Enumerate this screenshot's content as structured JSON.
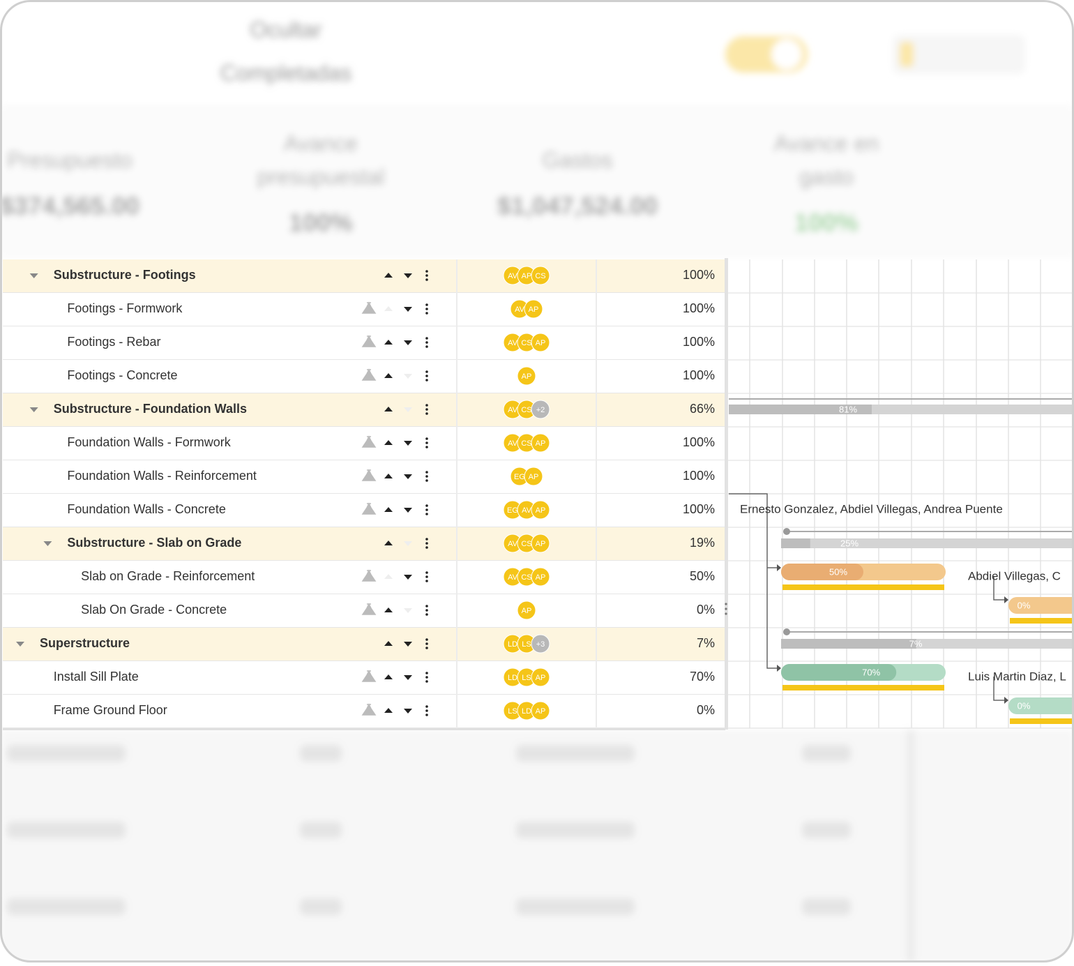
{
  "toolbar": {
    "hide_completed": [
      "Ocultar",
      "Completadas"
    ]
  },
  "summary": [
    {
      "label": [
        "Presupuesto"
      ],
      "value": "$374,565.00"
    },
    {
      "label": [
        "Avance",
        "presupuestal"
      ],
      "value": "100%"
    },
    {
      "label": [
        "Gastos"
      ],
      "value": "$1,047,524.00"
    },
    {
      "label": [
        "Avance en",
        "gasto"
      ],
      "value": "100%"
    }
  ],
  "table": {
    "rows": [
      {
        "name": "Substructure - Footings",
        "avatars": [
          "AV",
          "AP",
          "CS"
        ],
        "progress": "100%"
      },
      {
        "name": "Footings - Formwork",
        "avatars": [
          "AV",
          "AP"
        ],
        "progress": "100%"
      },
      {
        "name": "Footings - Rebar",
        "avatars": [
          "AV",
          "CS",
          "AP"
        ],
        "progress": "100%"
      },
      {
        "name": "Footings - Concrete",
        "avatars": [
          "AP"
        ],
        "progress": "100%"
      },
      {
        "name": "Substructure - Foundation Walls",
        "avatars": [
          "AV",
          "CS"
        ],
        "more": "+2",
        "progress": "66%"
      },
      {
        "name": "Foundation Walls - Formwork",
        "avatars": [
          "AV",
          "CS",
          "AP"
        ],
        "progress": "100%"
      },
      {
        "name": "Foundation Walls - Reinforcement",
        "avatars": [
          "EG",
          "AP"
        ],
        "progress": "100%"
      },
      {
        "name": "Foundation Walls - Concrete",
        "avatars": [
          "EG",
          "AV",
          "AP"
        ],
        "progress": "100%"
      },
      {
        "name": "Substructure - Slab on Grade",
        "avatars": [
          "AV",
          "CS",
          "AP"
        ],
        "progress": "19%"
      },
      {
        "name": "Slab on Grade - Reinforcement",
        "avatars": [
          "AV",
          "CS",
          "AP"
        ],
        "progress": "50%"
      },
      {
        "name": "Slab On Grade - Concrete",
        "avatars": [
          "AP"
        ],
        "progress": "0%"
      },
      {
        "name": "Superstructure",
        "avatars": [
          "LD",
          "LS"
        ],
        "more": "+3",
        "progress": "7%"
      },
      {
        "name": "Install Sill Plate",
        "avatars": [
          "LD",
          "LS",
          "AP"
        ],
        "progress": "70%"
      },
      {
        "name": "Frame Ground Floor",
        "avatars": [
          "LS",
          "LD",
          "AP"
        ],
        "progress": "0%"
      }
    ]
  },
  "gantt": {
    "progress": [
      81,
      25,
      50,
      0,
      7,
      70,
      0
    ],
    "progress_labels": [
      "81%",
      "25%",
      "50%",
      "0%",
      "7%",
      "70%",
      "0%"
    ],
    "assignees": [
      "Ernesto Gonzalez, Abdiel Villegas, Andrea Puente",
      "Abdiel Villegas, C",
      "Luis Martin Diaz, L"
    ]
  }
}
